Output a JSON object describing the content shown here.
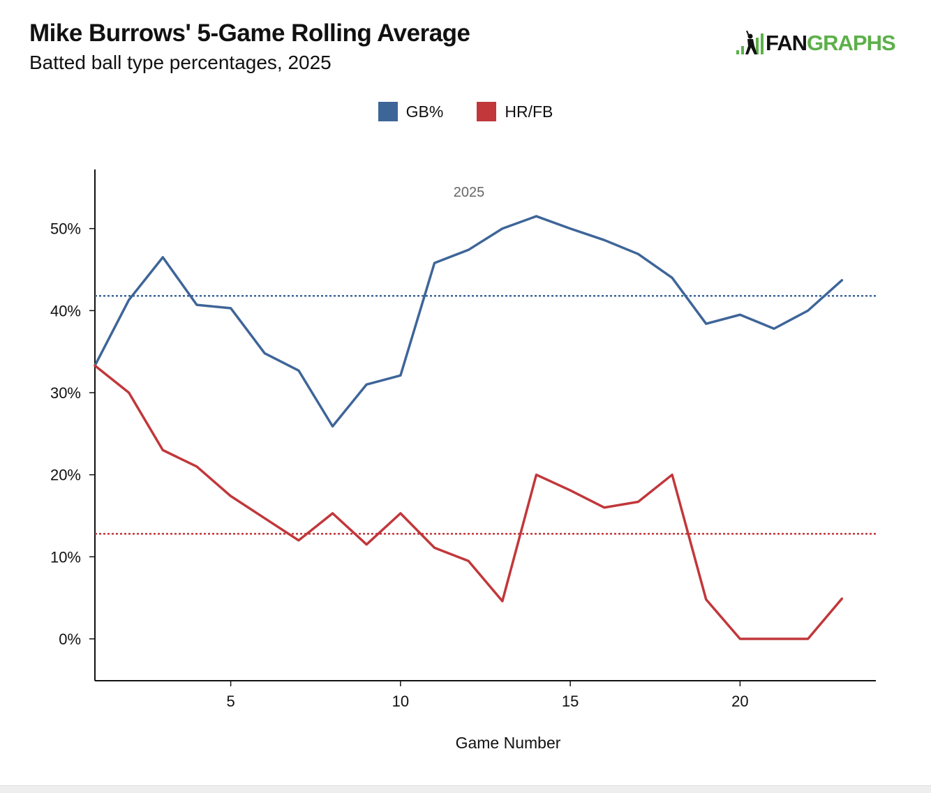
{
  "header": {
    "title": "Mike Burrows' 5-Game Rolling Average",
    "subtitle": "Batted ball type percentages, 2025",
    "logo_text_a": "FAN",
    "logo_text_b": "GRAPHS"
  },
  "chart_data": {
    "type": "line",
    "title": "Mike Burrows' 5-Game Rolling Average",
    "subtitle": "Batted ball type percentages, 2025",
    "annotation": "2025",
    "xlabel": "Game Number",
    "ylabel": "",
    "xlim": [
      1,
      24
    ],
    "ylim": [
      -5.1,
      57.2
    ],
    "xticks": [
      5,
      10,
      15,
      20
    ],
    "yticks": [
      0,
      10,
      20,
      30,
      40,
      50
    ],
    "ytick_labels": [
      "0%",
      "10%",
      "20%",
      "30%",
      "40%",
      "50%"
    ],
    "legend_position": "top-center",
    "grid": false,
    "x": [
      1,
      2,
      3,
      4,
      5,
      6,
      7,
      8,
      9,
      10,
      11,
      12,
      13,
      14,
      15,
      16,
      17,
      18,
      19,
      20,
      21,
      22,
      23
    ],
    "series": [
      {
        "name": "GB%",
        "color": "#3e6598",
        "average": 41.8,
        "values": [
          33.3,
          41.3,
          46.5,
          40.7,
          40.3,
          34.8,
          32.7,
          25.9,
          31.0,
          32.1,
          45.8,
          47.4,
          50.0,
          51.5,
          50.0,
          48.6,
          46.9,
          44.0,
          38.4,
          39.5,
          37.8,
          40.0,
          43.7
        ]
      },
      {
        "name": "HR/FB",
        "color": "#c1373a",
        "average": 12.8,
        "values": [
          33.3,
          30.0,
          23.0,
          21.0,
          17.4,
          14.7,
          12.0,
          15.3,
          11.5,
          15.3,
          11.1,
          9.5,
          4.6,
          20.0,
          18.1,
          16.0,
          16.7,
          20.0,
          4.8,
          0.0,
          0.0,
          0.0,
          4.9
        ]
      }
    ]
  }
}
